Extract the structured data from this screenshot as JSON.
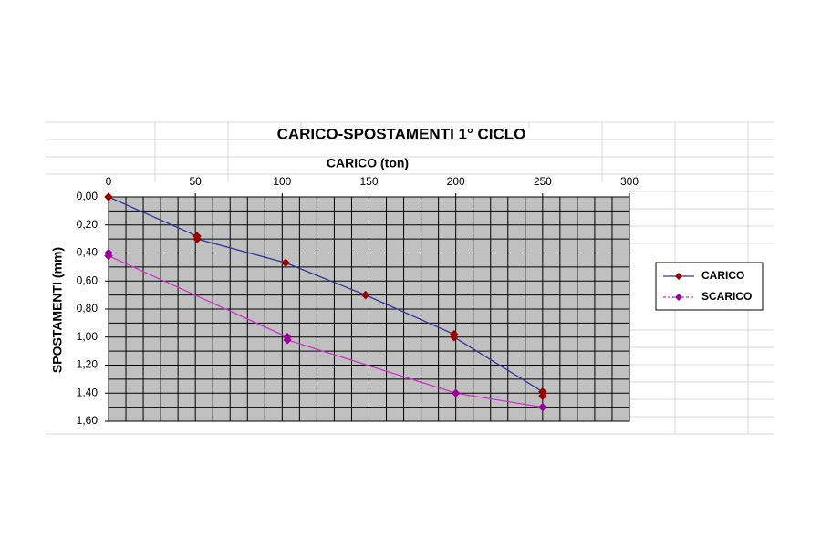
{
  "chart_data": {
    "type": "line",
    "title": "CARICO-SPOSTAMENTI 1° CICLO",
    "x_label": "CARICO (ton)",
    "y_label": "SPOSTAMENTI (mm)",
    "xlim": [
      0,
      300
    ],
    "xticks": [
      0,
      50,
      100,
      150,
      200,
      250,
      300
    ],
    "ylim": [
      0,
      1.6
    ],
    "y_reversed": true,
    "yticks": [
      {
        "value": 0,
        "label": "0,00"
      },
      {
        "value": 0.2,
        "label": "0,20"
      },
      {
        "value": 0.4,
        "label": "0,40"
      },
      {
        "value": 0.6,
        "label": "0,60"
      },
      {
        "value": 0.8,
        "label": "0,80"
      },
      {
        "value": 1.0,
        "label": "1,00"
      },
      {
        "value": 1.2,
        "label": "1,20"
      },
      {
        "value": 1.4,
        "label": "1,40"
      },
      {
        "value": 1.6,
        "label": "1,60"
      }
    ],
    "x_axis_position": "top",
    "grid": true,
    "minor_grid": {
      "x": 5,
      "y": 2
    },
    "plot_background": "#c0c0c0",
    "legend": "right",
    "series": [
      {
        "name": "CARICO",
        "color": "#333399",
        "marker_color": "#990000",
        "x": [
          0,
          51,
          51,
          102,
          148,
          199,
          199,
          250,
          250
        ],
        "values": [
          0,
          0.28,
          0.3,
          0.47,
          0.7,
          0.98,
          1.0,
          1.39,
          1.42
        ]
      },
      {
        "name": "SCARICO",
        "color": "#cc33cc",
        "marker_color": "#990099",
        "dashed_legend": true,
        "x": [
          0,
          0,
          103,
          103,
          200,
          250
        ],
        "values": [
          0.4,
          0.42,
          1.0,
          1.02,
          1.4,
          1.5
        ]
      }
    ]
  }
}
